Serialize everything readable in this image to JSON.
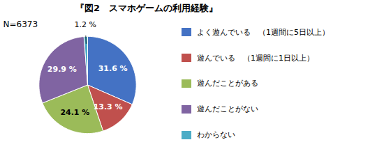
{
  "chart_data": {
    "type": "pie",
    "title": "『図2　スマホゲームの利用経験』",
    "annotations": [
      "N=6373"
    ],
    "categories": [
      "よく遊んでいる　（1週間に5日以上）",
      "遊んでいる　（1週間に1日以上）",
      "遊んだことがある",
      "遊んだことがない",
      "わからない"
    ],
    "values": [
      31.6,
      13.3,
      24.1,
      29.9,
      1.2
    ],
    "value_labels": [
      "31.6 %",
      "13.3 %",
      "24.1 %",
      "29.9 %",
      "1.2 %"
    ],
    "colors": [
      "#4472C4",
      "#C0504D",
      "#9BBB59",
      "#8064A2",
      "#4BACC6"
    ],
    "data_labels": true,
    "legend": "right"
  }
}
